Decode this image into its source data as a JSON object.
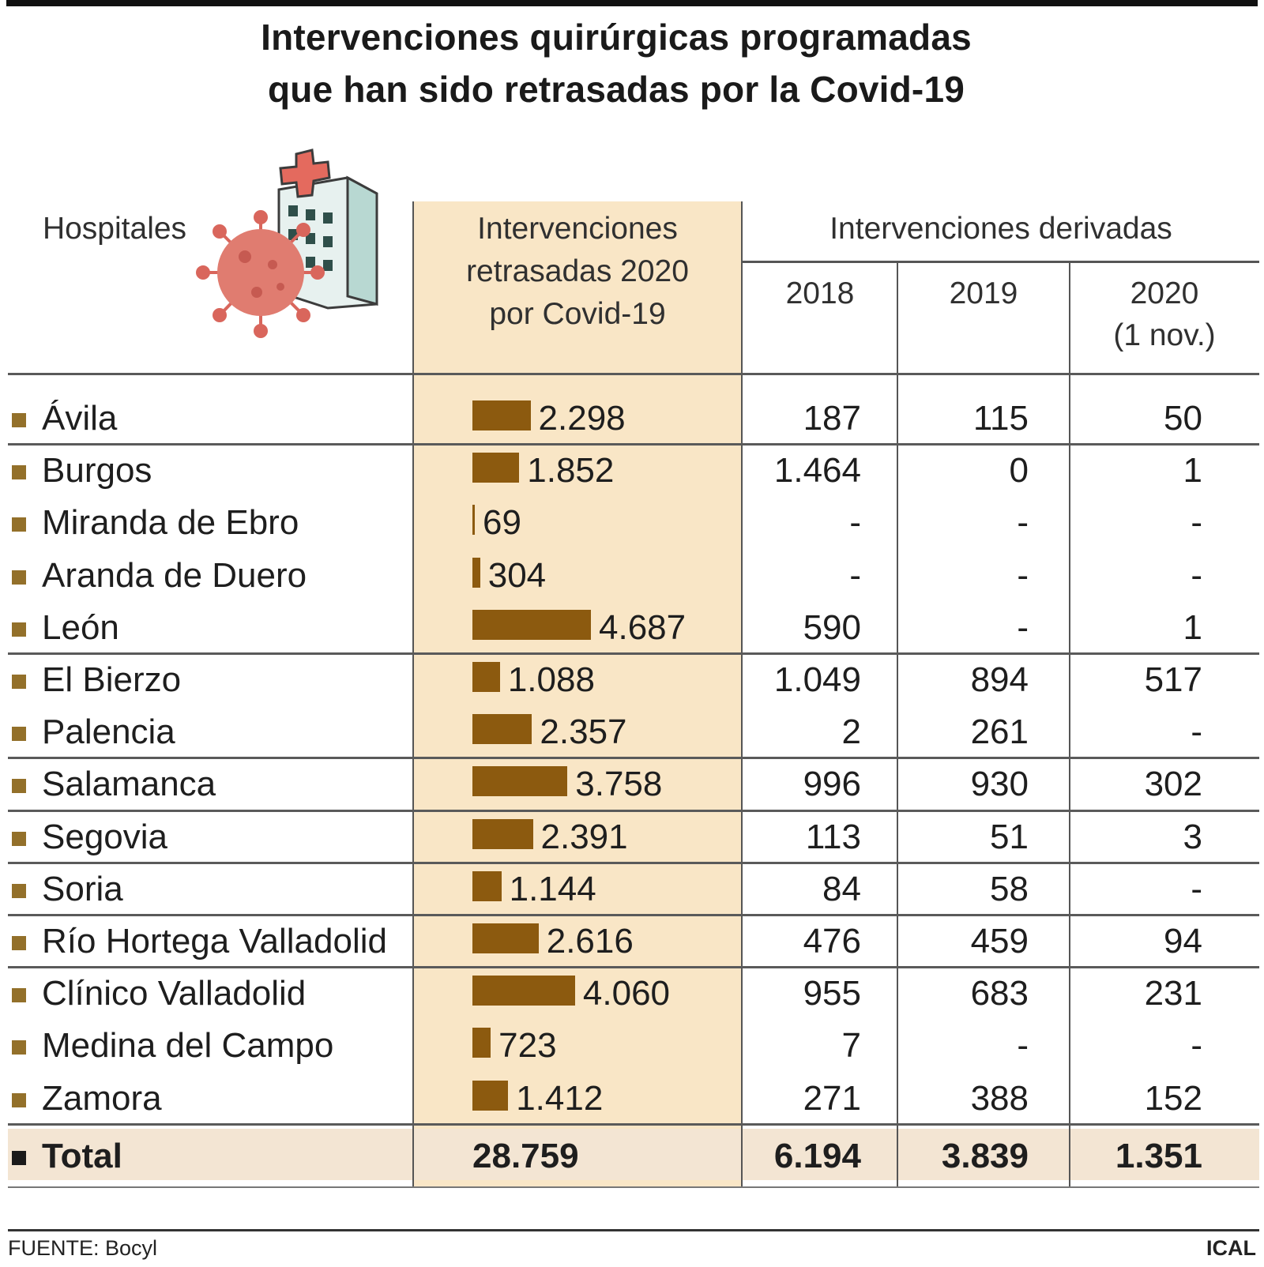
{
  "title_line1": "Intervenciones quirúrgicas programadas",
  "title_line2": "que han sido retrasadas por la Covid-19",
  "headers": {
    "hospitales": "Hospitales",
    "retrasadas_l1": "Intervenciones",
    "retrasadas_l2": "retrasadas 2020",
    "retrasadas_l3": "por Covid-19",
    "derivadas": "Intervenciones derivadas",
    "y2018": "2018",
    "y2019": "2019",
    "y2020_l1": "2020",
    "y2020_l2": "(1 nov.)"
  },
  "colors": {
    "bar": "#8c5a0f",
    "marker": "#93702a",
    "shade": "#f9e6c6"
  },
  "icon": "virus-hospital-icon",
  "chart_data": {
    "type": "table",
    "bar_max": 4687,
    "rows": [
      {
        "name": "Ávila",
        "value": 2298,
        "label": "2.298",
        "d2018": "187",
        "d2019": "115",
        "d2020": "50"
      },
      {
        "name": "Burgos",
        "value": 1852,
        "label": "1.852",
        "d2018": "1.464",
        "d2019": "0",
        "d2020": "1"
      },
      {
        "name": "Miranda de Ebro",
        "value": 69,
        "label": "69",
        "d2018": "-",
        "d2019": "-",
        "d2020": "-"
      },
      {
        "name": "Aranda de Duero",
        "value": 304,
        "label": "304",
        "d2018": "-",
        "d2019": "-",
        "d2020": "-"
      },
      {
        "name": "León",
        "value": 4687,
        "label": "4.687",
        "d2018": "590",
        "d2019": "-",
        "d2020": "1"
      },
      {
        "name": "El Bierzo",
        "value": 1088,
        "label": "1.088",
        "d2018": "1.049",
        "d2019": "894",
        "d2020": "517"
      },
      {
        "name": "Palencia",
        "value": 2357,
        "label": "2.357",
        "d2018": "2",
        "d2019": "261",
        "d2020": "-"
      },
      {
        "name": "Salamanca",
        "value": 3758,
        "label": "3.758",
        "d2018": "996",
        "d2019": "930",
        "d2020": "302"
      },
      {
        "name": "Segovia",
        "value": 2391,
        "label": "2.391",
        "d2018": "113",
        "d2019": "51",
        "d2020": "3"
      },
      {
        "name": "Soria",
        "value": 1144,
        "label": "1.144",
        "d2018": "84",
        "d2019": "58",
        "d2020": "-"
      },
      {
        "name": "Río Hortega Valladolid",
        "value": 2616,
        "label": "2.616",
        "d2018": "476",
        "d2019": "459",
        "d2020": "94"
      },
      {
        "name": "Clínico Valladolid",
        "value": 4060,
        "label": "4.060",
        "d2018": "955",
        "d2019": "683",
        "d2020": "231"
      },
      {
        "name": "Medina del Campo",
        "value": 723,
        "label": "723",
        "d2018": "7",
        "d2019": "-",
        "d2020": "-"
      },
      {
        "name": "Zamora",
        "value": 1412,
        "label": "1.412",
        "d2018": "271",
        "d2019": "388",
        "d2020": "152"
      }
    ],
    "total": {
      "name": "Total",
      "value": "28.759",
      "d2018": "6.194",
      "d2019": "3.839",
      "d2020": "1.351"
    }
  },
  "footer": {
    "source": "FUENTE: Bocyl",
    "credit": "ICAL"
  }
}
